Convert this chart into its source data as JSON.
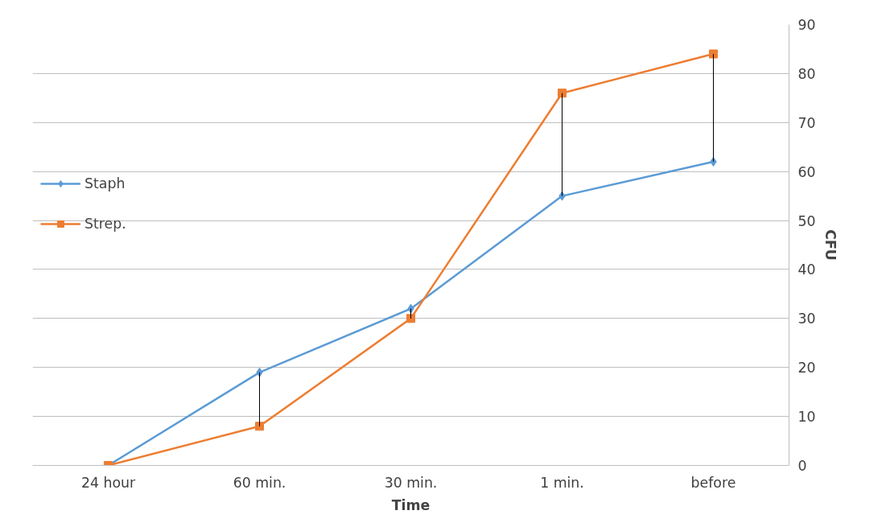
{
  "chart_data": {
    "type": "line",
    "xlabel": "Time",
    "ylabel": "CFU",
    "categories": [
      "24 hour",
      "60 min.",
      "30 min.",
      "1 min.",
      "before"
    ],
    "series": [
      {
        "name": "Staph",
        "color": "#5b9bd5",
        "marker": "diamond",
        "values": [
          0,
          19,
          32,
          55,
          62
        ],
        "errors": [
          null,
          [
            8,
            19
          ],
          [
            30,
            32
          ],
          [
            55,
            76
          ],
          [
            62,
            84
          ]
        ]
      },
      {
        "name": "Strep.",
        "color": "#ed7d31",
        "marker": "square",
        "values": [
          0,
          8,
          30,
          76,
          84
        ]
      }
    ],
    "ylim": [
      0,
      90
    ],
    "yticks": [
      0,
      10,
      20,
      30,
      40,
      50,
      60,
      70,
      80,
      90
    ],
    "grid": "y",
    "legend": "left"
  }
}
